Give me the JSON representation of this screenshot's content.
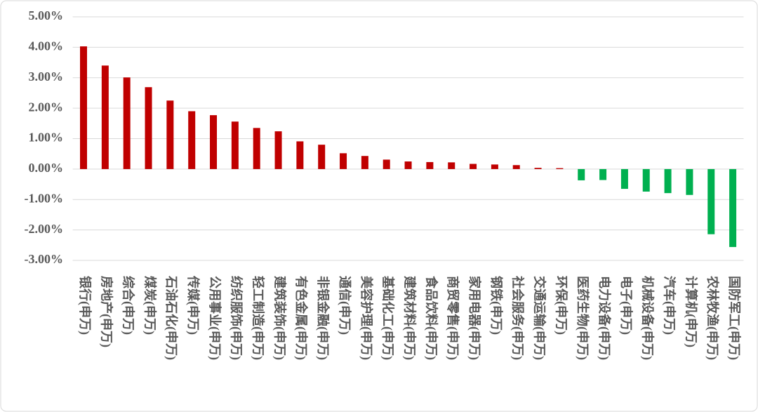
{
  "chart_data": {
    "type": "bar",
    "categories": [
      "银行(申万)",
      "房地产(申万)",
      "综合(申万)",
      "煤炭(申万)",
      "石油石化(申万)",
      "传媒(申万)",
      "公用事业(申万)",
      "纺织服饰(申万)",
      "轻工制造(申万)",
      "建筑装饰(申万)",
      "有色金属(申万)",
      "非银金融(申万)",
      "通信(申万)",
      "美容护理(申万)",
      "基础化工(申万)",
      "建筑材料(申万)",
      "食品饮料(申万)",
      "商贸零售(申万)",
      "家用电器(申万)",
      "钢铁(申万)",
      "社会服务(申万)",
      "交通运输(申万)",
      "环保(申万)",
      "医药生物(申万)",
      "电力设备(申万)",
      "电子(申万)",
      "机械设备(申万)",
      "汽车(申万)",
      "计算机(申万)",
      "农林牧渔(申万)",
      "国防军工(申万)"
    ],
    "values": [
      4.03,
      3.4,
      3.01,
      2.69,
      2.25,
      1.9,
      1.77,
      1.56,
      1.35,
      1.24,
      0.91,
      0.8,
      0.52,
      0.43,
      0.31,
      0.25,
      0.23,
      0.22,
      0.17,
      0.15,
      0.13,
      0.04,
      0.03,
      -0.37,
      -0.36,
      -0.65,
      -0.74,
      -0.79,
      -0.85,
      -2.14,
      -2.56
    ],
    "color": "#c00000",
    "negative_color": "#00b050",
    "ylim": [
      -3,
      5
    ],
    "yticks": [
      {
        "value": 5,
        "label": "5.00%"
      },
      {
        "value": 4,
        "label": "4.00%"
      },
      {
        "value": 3,
        "label": "3.00%"
      },
      {
        "value": 2,
        "label": "2.00%"
      },
      {
        "value": 1,
        "label": "1.00%"
      },
      {
        "value": 0,
        "label": "0.00%"
      },
      {
        "value": -1,
        "label": "-1.00%"
      },
      {
        "value": -2,
        "label": "-2.00%"
      },
      {
        "value": -3,
        "label": "-3.00%"
      }
    ],
    "grid": true
  }
}
